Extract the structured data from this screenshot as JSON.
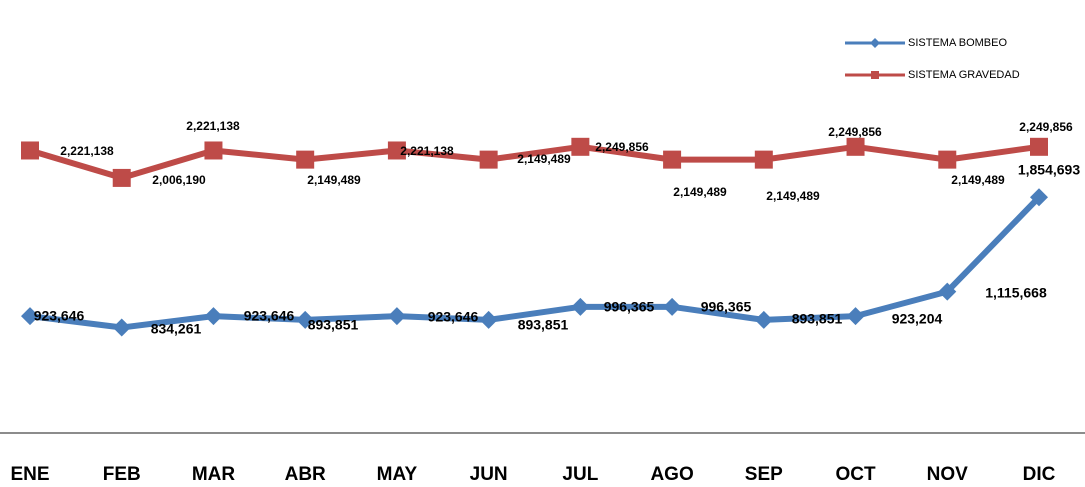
{
  "chart_data": {
    "type": "line",
    "categories": [
      "ENE",
      "FEB",
      "MAR",
      "ABR",
      "MAY",
      "JUN",
      "JUL",
      "AGO",
      "SEP",
      "OCT",
      "NOV",
      "DIC"
    ],
    "series": [
      {
        "name": "SISTEMA BOMBEO",
        "color": "#4a7ebb",
        "marker": "diamond",
        "values": [
          923646,
          834261,
          923646,
          893851,
          923646,
          893851,
          996365,
          996365,
          893851,
          923204,
          1115668,
          1854693
        ],
        "value_labels": [
          "923,646",
          "834,261",
          "923,646",
          "893,851",
          "923,646",
          "893,851",
          "996,365",
          "996,365",
          "893,851",
          "923,204",
          "1,115,668",
          "1,854,693"
        ]
      },
      {
        "name": "SISTEMA GRAVEDAD",
        "color": "#be4b48",
        "marker": "square",
        "values": [
          2221138,
          2006190,
          2221138,
          2149489,
          2221138,
          2149489,
          2249856,
          2149489,
          2149489,
          2249856,
          2149489,
          2249856
        ],
        "value_labels": [
          "2,221,138",
          "2,006,190",
          "2,221,138",
          "2,149,489",
          "2,221,138",
          "2,149,489",
          "2,249,856",
          "2,149,489",
          "2,149,489",
          "2,249,856",
          "2,149,489",
          "2,249,856"
        ]
      }
    ],
    "ylim": [
      0,
      3400000
    ],
    "legend": "top-right",
    "grid": false
  }
}
